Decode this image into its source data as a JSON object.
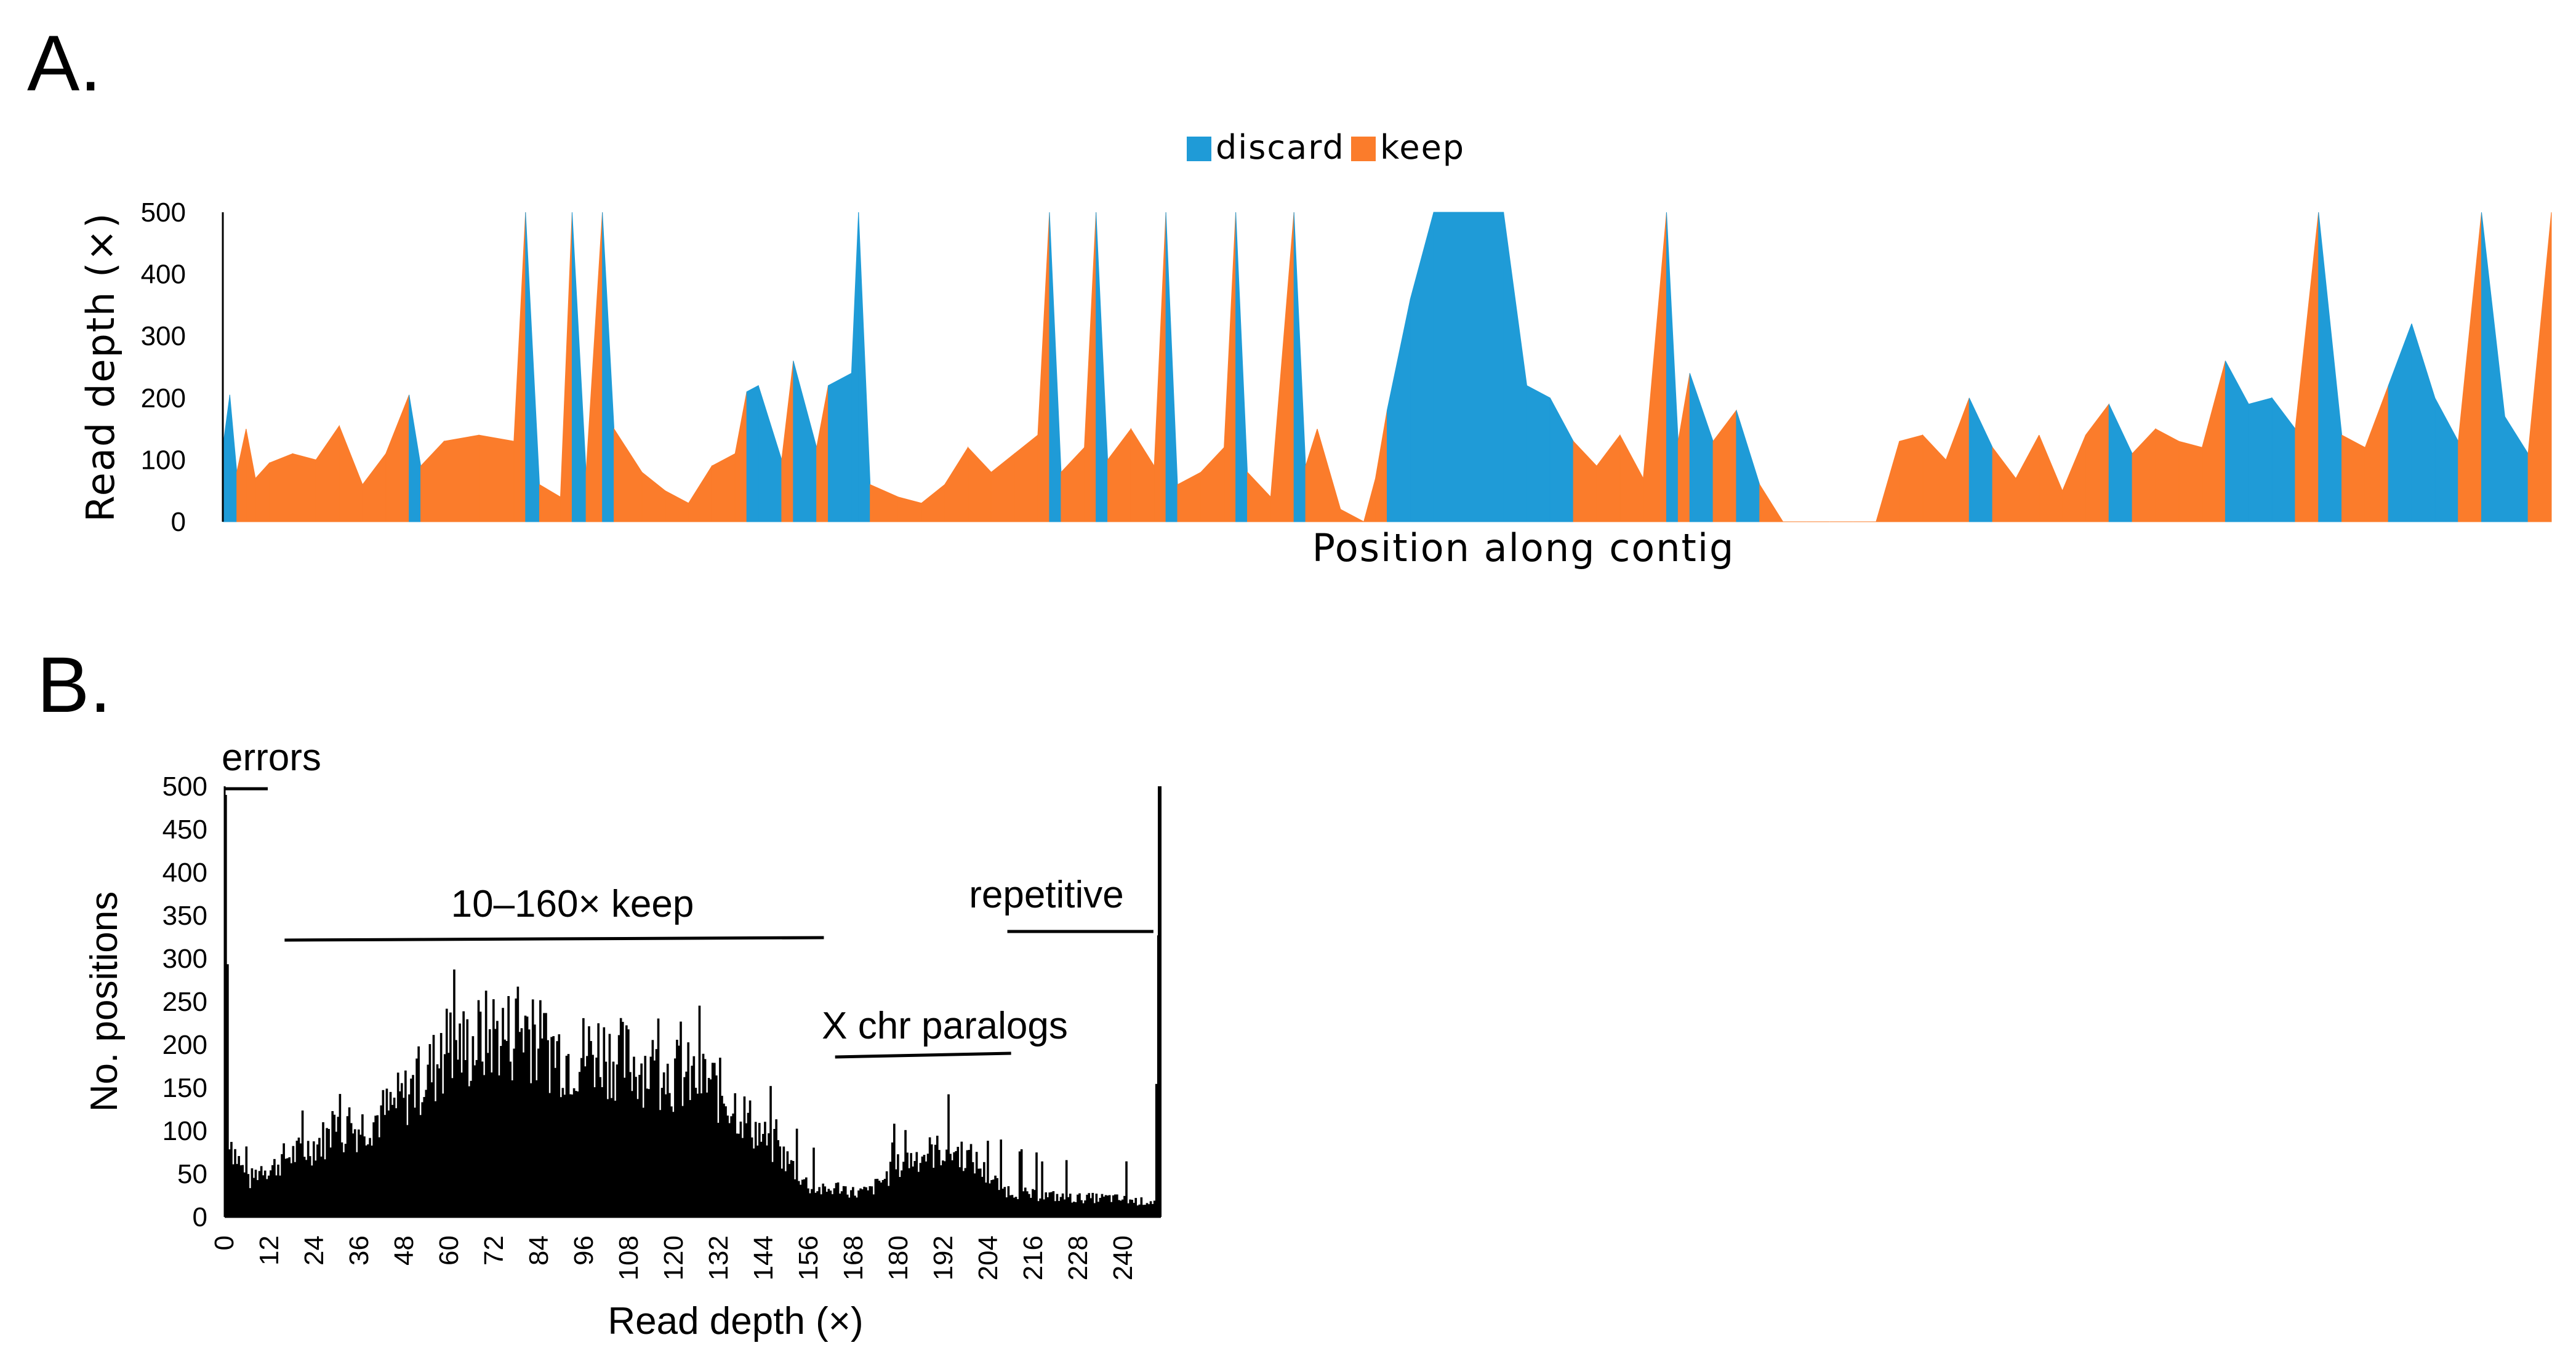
{
  "panels": {
    "a_label": "A.",
    "b_label": "B."
  },
  "chart_data": [
    {
      "type": "area",
      "panel": "A.",
      "xlabel": "Position along contig",
      "ylabel": "Read depth (×)",
      "ylim": [
        0,
        500
      ],
      "yticks": [
        "0",
        "100",
        "200",
        "300",
        "400",
        "500"
      ],
      "legend": {
        "placement": "top-center",
        "entries": [
          "discard",
          "keep"
        ]
      },
      "series_colors": {
        "discard": "#1f9bd7",
        "keep": "#fb7c2b"
      },
      "depth_profile": [
        [
          0,
          120,
          "d"
        ],
        [
          0.3,
          205,
          "d"
        ],
        [
          0.6,
          80,
          "k"
        ],
        [
          1.0,
          150,
          "k"
        ],
        [
          1.4,
          70,
          "k"
        ],
        [
          2.0,
          95,
          "k"
        ],
        [
          3.0,
          110,
          "k"
        ],
        [
          4.0,
          100,
          "k"
        ],
        [
          5.0,
          155,
          "k"
        ],
        [
          6.0,
          60,
          "k"
        ],
        [
          7.0,
          110,
          "k"
        ],
        [
          8.0,
          205,
          "d"
        ],
        [
          8.5,
          90,
          "k"
        ],
        [
          9.5,
          130,
          "k"
        ],
        [
          11.0,
          140,
          "k"
        ],
        [
          12.5,
          130,
          "k"
        ],
        [
          13.0,
          500,
          "d"
        ],
        [
          13.6,
          60,
          "k"
        ],
        [
          14.5,
          40,
          "k"
        ],
        [
          15.0,
          500,
          "d"
        ],
        [
          15.6,
          80,
          "k"
        ],
        [
          16.3,
          500,
          "d"
        ],
        [
          16.8,
          150,
          "k"
        ],
        [
          18.0,
          80,
          "k"
        ],
        [
          19.0,
          50,
          "k"
        ],
        [
          20.0,
          30,
          "k"
        ],
        [
          21.0,
          90,
          "k"
        ],
        [
          22.0,
          110,
          "k"
        ],
        [
          22.5,
          210,
          "d"
        ],
        [
          23.0,
          220,
          "d"
        ],
        [
          24.0,
          100,
          "k"
        ],
        [
          24.5,
          260,
          "d"
        ],
        [
          25.5,
          120,
          "k"
        ],
        [
          26.0,
          220,
          "d"
        ],
        [
          27.0,
          240,
          "d"
        ],
        [
          27.3,
          500,
          "d"
        ],
        [
          27.8,
          60,
          "k"
        ],
        [
          29.0,
          40,
          "k"
        ],
        [
          30.0,
          30,
          "k"
        ],
        [
          31.0,
          60,
          "k"
        ],
        [
          32.0,
          120,
          "k"
        ],
        [
          33.0,
          80,
          "k"
        ],
        [
          34.0,
          110,
          "k"
        ],
        [
          35.0,
          140,
          "k"
        ],
        [
          35.5,
          500,
          "d"
        ],
        [
          36.0,
          80,
          "k"
        ],
        [
          37.0,
          120,
          "k"
        ],
        [
          37.5,
          500,
          "d"
        ],
        [
          38.0,
          100,
          "k"
        ],
        [
          39.0,
          150,
          "k"
        ],
        [
          40.0,
          90,
          "k"
        ],
        [
          40.5,
          500,
          "d"
        ],
        [
          41.0,
          60,
          "k"
        ],
        [
          42.0,
          80,
          "k"
        ],
        [
          43.0,
          120,
          "k"
        ],
        [
          43.5,
          500,
          "d"
        ],
        [
          44.0,
          80,
          "k"
        ],
        [
          45.0,
          40,
          "k"
        ],
        [
          46.0,
          500,
          "d"
        ],
        [
          46.5,
          90,
          "k"
        ],
        [
          47.0,
          150,
          "k"
        ],
        [
          48.0,
          20,
          "k"
        ],
        [
          49.0,
          0,
          "k"
        ],
        [
          49.5,
          70,
          "k"
        ],
        [
          50.0,
          180,
          "d"
        ],
        [
          51.0,
          360,
          "d"
        ],
        [
          52.0,
          500,
          "d"
        ],
        [
          55.0,
          500,
          "d"
        ],
        [
          56.0,
          220,
          "d"
        ],
        [
          57.0,
          200,
          "d"
        ],
        [
          58.0,
          130,
          "k"
        ],
        [
          59.0,
          90,
          "k"
        ],
        [
          60.0,
          140,
          "k"
        ],
        [
          61.0,
          70,
          "k"
        ],
        [
          62.0,
          500,
          "d"
        ],
        [
          62.5,
          130,
          "k"
        ],
        [
          63.0,
          240,
          "d"
        ],
        [
          64.0,
          130,
          "k"
        ],
        [
          65.0,
          180,
          "d"
        ],
        [
          66.0,
          60,
          "k"
        ],
        [
          67.0,
          0,
          "k"
        ],
        [
          68.0,
          0,
          "k"
        ],
        [
          69.0,
          0,
          "k"
        ],
        [
          70.0,
          0,
          "k"
        ],
        [
          71.0,
          0,
          "k"
        ],
        [
          72.0,
          130,
          "k"
        ],
        [
          73.0,
          140,
          "k"
        ],
        [
          74.0,
          100,
          "k"
        ],
        [
          75.0,
          200,
          "d"
        ],
        [
          76.0,
          120,
          "k"
        ],
        [
          77.0,
          70,
          "k"
        ],
        [
          78.0,
          140,
          "k"
        ],
        [
          79.0,
          50,
          "k"
        ],
        [
          80.0,
          140,
          "k"
        ],
        [
          81.0,
          190,
          "d"
        ],
        [
          82.0,
          110,
          "k"
        ],
        [
          83.0,
          150,
          "k"
        ],
        [
          84.0,
          130,
          "k"
        ],
        [
          85.0,
          120,
          "k"
        ],
        [
          86.0,
          260,
          "d"
        ],
        [
          87.0,
          190,
          "d"
        ],
        [
          88.0,
          200,
          "d"
        ],
        [
          89.0,
          150,
          "k"
        ],
        [
          90.0,
          500,
          "d"
        ],
        [
          91.0,
          140,
          "k"
        ],
        [
          92.0,
          120,
          "k"
        ],
        [
          93.0,
          220,
          "d"
        ],
        [
          94.0,
          320,
          "d"
        ],
        [
          95.0,
          200,
          "d"
        ],
        [
          96.0,
          130,
          "k"
        ],
        [
          97.0,
          500,
          "d"
        ],
        [
          98.0,
          170,
          "d"
        ],
        [
          99.0,
          110,
          "k"
        ],
        [
          100,
          500,
          "d"
        ]
      ]
    },
    {
      "type": "bar",
      "panel": "B.",
      "xlabel": "Read depth (×)",
      "ylabel": "No. positions",
      "ylim": [
        0,
        500
      ],
      "xlim": [
        0,
        250
      ],
      "yticks": [
        "0",
        "50",
        "100",
        "150",
        "200",
        "250",
        "300",
        "350",
        "400",
        "450",
        "500"
      ],
      "xticks": [
        "0",
        "12",
        "24",
        "36",
        "48",
        "60",
        "72",
        "84",
        "96",
        "108",
        "120",
        "132",
        "144",
        "156",
        "168",
        "180",
        "192",
        "204",
        "216",
        "228",
        "240"
      ],
      "anchor_values": [
        [
          0,
          490
        ],
        [
          1,
          100
        ],
        [
          2,
          80
        ],
        [
          4,
          60
        ],
        [
          6,
          40
        ],
        [
          8,
          50
        ],
        [
          10,
          60
        ],
        [
          12,
          55
        ],
        [
          16,
          70
        ],
        [
          20,
          75
        ],
        [
          24,
          85
        ],
        [
          28,
          95
        ],
        [
          32,
          100
        ],
        [
          36,
          105
        ],
        [
          40,
          115
        ],
        [
          44,
          125
        ],
        [
          48,
          140
        ],
        [
          52,
          160
        ],
        [
          56,
          175
        ],
        [
          60,
          205
        ],
        [
          64,
          195
        ],
        [
          68,
          205
        ],
        [
          72,
          215
        ],
        [
          76,
          210
        ],
        [
          80,
          225
        ],
        [
          84,
          200
        ],
        [
          88,
          195
        ],
        [
          92,
          185
        ],
        [
          96,
          190
        ],
        [
          100,
          195
        ],
        [
          104,
          185
        ],
        [
          108,
          180
        ],
        [
          112,
          175
        ],
        [
          116,
          170
        ],
        [
          120,
          165
        ],
        [
          124,
          160
        ],
        [
          128,
          160
        ],
        [
          132,
          145
        ],
        [
          136,
          130
        ],
        [
          140,
          110
        ],
        [
          144,
          90
        ],
        [
          148,
          75
        ],
        [
          152,
          55
        ],
        [
          156,
          35
        ],
        [
          160,
          30
        ],
        [
          164,
          35
        ],
        [
          168,
          28
        ],
        [
          172,
          30
        ],
        [
          176,
          45
        ],
        [
          180,
          60
        ],
        [
          184,
          70
        ],
        [
          188,
          75
        ],
        [
          192,
          78
        ],
        [
          196,
          75
        ],
        [
          200,
          65
        ],
        [
          204,
          45
        ],
        [
          208,
          32
        ],
        [
          212,
          28
        ],
        [
          216,
          25
        ],
        [
          220,
          25
        ],
        [
          224,
          22
        ],
        [
          228,
          22
        ],
        [
          232,
          22
        ],
        [
          236,
          22
        ],
        [
          240,
          20
        ],
        [
          244,
          18
        ],
        [
          248,
          18
        ],
        [
          250,
          500
        ]
      ],
      "annotations": {
        "errors": "errors",
        "keep": "10–160× keep",
        "paralogs": "X chr paralogs",
        "repetitive": "repetitive"
      }
    }
  ]
}
